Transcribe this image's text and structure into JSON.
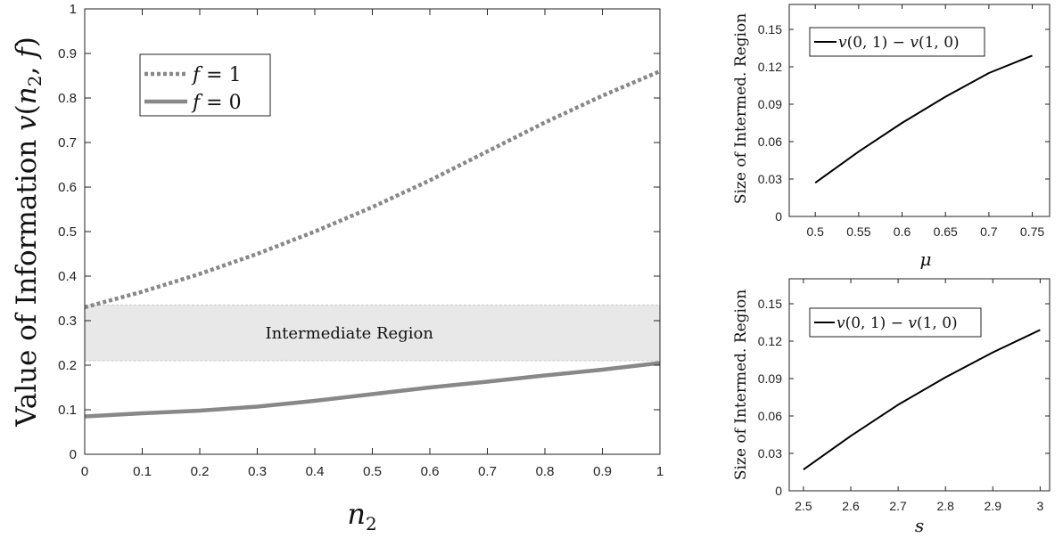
{
  "chart_data": [
    {
      "type": "line",
      "ylabel": "Value of Information v(n₂, f)",
      "xlabel": "n₂",
      "xlim": [
        0,
        1
      ],
      "ylim": [
        0,
        1
      ],
      "x_ticks": [
        "0",
        "0.1",
        "0.2",
        "0.3",
        "0.4",
        "0.5",
        "0.6",
        "0.7",
        "0.8",
        "0.9",
        "1"
      ],
      "y_ticks": [
        "0",
        "0.1",
        "0.2",
        "0.3",
        "0.4",
        "0.5",
        "0.6",
        "0.7",
        "0.8",
        "0.9",
        "1"
      ],
      "legend_position": "top-left",
      "series": [
        {
          "name": "f = 1",
          "style": "dotted",
          "color": "#888888",
          "x": [
            0,
            0.1,
            0.2,
            0.3,
            0.4,
            0.5,
            0.6,
            0.7,
            0.8,
            0.9,
            1.0
          ],
          "y": [
            0.33,
            0.365,
            0.405,
            0.45,
            0.5,
            0.555,
            0.615,
            0.68,
            0.745,
            0.805,
            0.86
          ]
        },
        {
          "name": "f = 0",
          "style": "solid",
          "color": "#888888",
          "x": [
            0,
            0.1,
            0.2,
            0.3,
            0.4,
            0.5,
            0.6,
            0.7,
            0.8,
            0.9,
            1.0
          ],
          "y": [
            0.085,
            0.092,
            0.098,
            0.107,
            0.12,
            0.135,
            0.15,
            0.163,
            0.177,
            0.19,
            0.205
          ]
        }
      ],
      "band": {
        "label": "Intermediate Region",
        "y0": 0.21,
        "y1": 0.335,
        "color": "#e8e8e8"
      }
    },
    {
      "type": "line",
      "ylabel": "Size of Intermed. Region",
      "xlabel": "μ",
      "xlim": [
        0.47,
        0.77
      ],
      "ylim": [
        0,
        0.17
      ],
      "x_ticks": [
        "0.5",
        "0.55",
        "0.6",
        "0.65",
        "0.7",
        "0.75"
      ],
      "y_ticks": [
        "0",
        "0.03",
        "0.06",
        "0.09",
        "0.12",
        "0.15"
      ],
      "legend_position": "top-left",
      "series": [
        {
          "name": "v(0, 1) − v(1, 0)",
          "color": "#000000",
          "x": [
            0.5,
            0.55,
            0.6,
            0.65,
            0.7,
            0.75
          ],
          "y": [
            0.027,
            0.052,
            0.075,
            0.096,
            0.115,
            0.129
          ]
        }
      ]
    },
    {
      "type": "line",
      "ylabel": "Size of Intermed. Region",
      "xlabel": "s",
      "xlim": [
        2.47,
        3.02
      ],
      "ylim": [
        0,
        0.17
      ],
      "x_ticks": [
        "2.5",
        "2.6",
        "2.7",
        "2.8",
        "2.9",
        "3"
      ],
      "y_ticks": [
        "0",
        "0.03",
        "0.06",
        "0.09",
        "0.12",
        "0.15"
      ],
      "legend_position": "top-left",
      "series": [
        {
          "name": "v(0, 1) − v(1, 0)",
          "color": "#000000",
          "x": [
            2.5,
            2.6,
            2.7,
            2.8,
            2.9,
            3.0
          ],
          "y": [
            0.017,
            0.044,
            0.069,
            0.091,
            0.111,
            0.129
          ]
        }
      ]
    }
  ]
}
